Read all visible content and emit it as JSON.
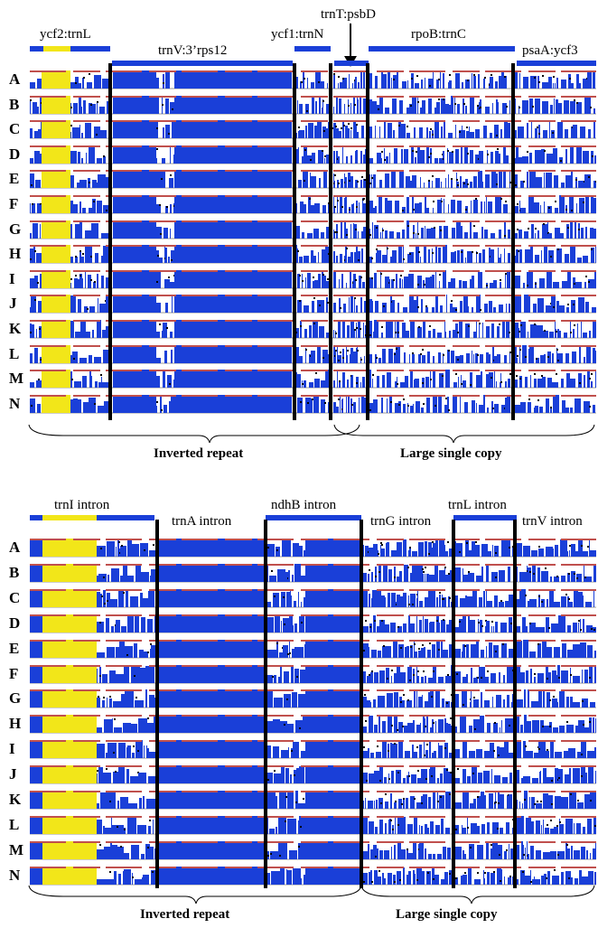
{
  "panels": [
    {
      "id": "top",
      "regions": [
        {
          "label": "ycf2:trnL"
        },
        {
          "label": "trnV:3’rps12"
        },
        {
          "label": "ycf1:trnN"
        },
        {
          "label": "trnT:psbD"
        },
        {
          "label": "rpoB:trnC"
        },
        {
          "label": "psaA:ycf3"
        }
      ],
      "rows": [
        "A",
        "B",
        "C",
        "D",
        "E",
        "F",
        "G",
        "H",
        "I",
        "J",
        "K",
        "L",
        "M",
        "N"
      ],
      "sections": [
        {
          "label": "Inverted repeat"
        },
        {
          "label": "Large single copy"
        }
      ]
    },
    {
      "id": "bottom",
      "regions": [
        {
          "label": "trnI intron"
        },
        {
          "label": "trnA intron"
        },
        {
          "label": "ndhB intron"
        },
        {
          "label": "trnG intron"
        },
        {
          "label": "trnL intron"
        },
        {
          "label": "trnV intron"
        }
      ],
      "rows": [
        "A",
        "B",
        "C",
        "D",
        "E",
        "F",
        "G",
        "H",
        "I",
        "J",
        "K",
        "L",
        "M",
        "N"
      ],
      "sections": [
        {
          "label": "Inverted repeat"
        },
        {
          "label": "Large single copy"
        }
      ]
    }
  ],
  "colors": {
    "conserved": "#1a3fd8",
    "exon": "#f2e619",
    "peak_line": "#c0504d",
    "variable_dot": "#000000"
  }
}
